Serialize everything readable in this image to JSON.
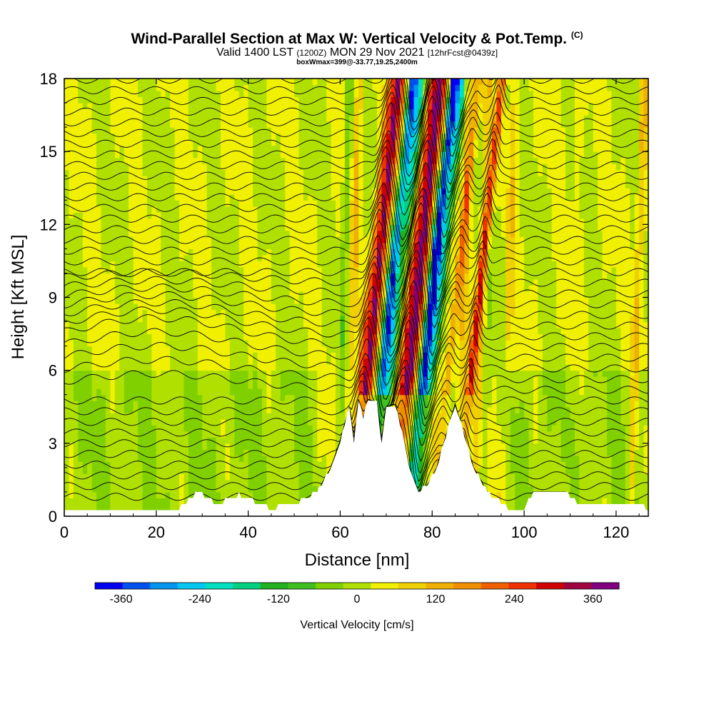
{
  "header": {
    "title_main": "Wind-Parallel Section at Max W: Vertical Velocity & Pot.Temp.",
    "title_copyright": "(C)",
    "valid_prefix": "Valid 1400 LST",
    "valid_utc": "(1200Z)",
    "valid_date": "MON 29 Nov 2021",
    "forecast_tag": "[12hrFcst@0439z]",
    "box_info": "boxWmax=399@-33.77,19.25,2400m"
  },
  "chart_data": {
    "type": "heatmap",
    "title": "Wind-Parallel Section at Max W: Vertical Velocity & Pot.Temp.",
    "xlabel": "Distance [nm]",
    "ylabel": "Height [Kft MSL]",
    "xlim": [
      0,
      127
    ],
    "ylim": [
      0,
      18
    ],
    "x_ticks": [
      0,
      20,
      40,
      60,
      80,
      100,
      120
    ],
    "y_ticks": [
      0,
      3,
      6,
      9,
      12,
      15,
      18
    ],
    "colorbar": {
      "title": "Vertical Velocity [cm/s]",
      "tick_values": [
        -360,
        -240,
        -120,
        0,
        120,
        240,
        360
      ],
      "tick_labels": [
        "-360",
        "-240",
        "-120",
        "0",
        "120",
        "240",
        "360"
      ],
      "range": [
        -400,
        400
      ],
      "colors": [
        "#0000f0",
        "#0050f0",
        "#0096f0",
        "#00c8f0",
        "#00e0c0",
        "#00d080",
        "#20b020",
        "#40c020",
        "#80d000",
        "#b0e000",
        "#f0f000",
        "#f0d000",
        "#f0b000",
        "#f09000",
        "#f06000",
        "#f03000",
        "#d00000",
        "#a00040",
        "#800080"
      ]
    },
    "terrain": [
      {
        "x": 0,
        "h": 0.3
      },
      {
        "x": 25,
        "h": 0.3
      },
      {
        "x": 29,
        "h": 1.0
      },
      {
        "x": 33,
        "h": 0.5
      },
      {
        "x": 38,
        "h": 0.9
      },
      {
        "x": 45,
        "h": 0.3
      },
      {
        "x": 51,
        "h": 0.6
      },
      {
        "x": 55,
        "h": 1.0
      },
      {
        "x": 58,
        "h": 2.0
      },
      {
        "x": 60,
        "h": 3.1
      },
      {
        "x": 62,
        "h": 4.5
      },
      {
        "x": 63,
        "h": 3.0
      },
      {
        "x": 64,
        "h": 4.8
      },
      {
        "x": 65,
        "h": 4.0
      },
      {
        "x": 66,
        "h": 4.8
      },
      {
        "x": 68,
        "h": 4.7
      },
      {
        "x": 69,
        "h": 3.0
      },
      {
        "x": 70,
        "h": 4.5
      },
      {
        "x": 72,
        "h": 4.6
      },
      {
        "x": 74,
        "h": 3.0
      },
      {
        "x": 75,
        "h": 2.0
      },
      {
        "x": 77,
        "h": 1.0
      },
      {
        "x": 79,
        "h": 1.3
      },
      {
        "x": 81,
        "h": 2.0
      },
      {
        "x": 83,
        "h": 3.3
      },
      {
        "x": 85,
        "h": 4.6
      },
      {
        "x": 87,
        "h": 3.3
      },
      {
        "x": 89,
        "h": 2.0
      },
      {
        "x": 92,
        "h": 1.0
      },
      {
        "x": 97,
        "h": 0.3
      },
      {
        "x": 100,
        "h": 0.3
      },
      {
        "x": 102,
        "h": 1.0
      },
      {
        "x": 109,
        "h": 1.0
      },
      {
        "x": 112,
        "h": 0.5
      },
      {
        "x": 117,
        "h": 0.5
      },
      {
        "x": 121,
        "h": 0.6
      },
      {
        "x": 124,
        "h": 0.6
      },
      {
        "x": 127,
        "h": 0.3
      }
    ],
    "w_bands": [
      {
        "x": 60,
        "w": -60
      },
      {
        "x": 62,
        "w": 80
      },
      {
        "x": 64,
        "w": 180
      },
      {
        "x": 65.5,
        "w": 330
      },
      {
        "x": 67,
        "w": 120
      },
      {
        "x": 68,
        "w": -150
      },
      {
        "x": 69,
        "w": -300
      },
      {
        "x": 70.5,
        "w": -200
      },
      {
        "x": 72,
        "w": 60
      },
      {
        "x": 73,
        "w": 220
      },
      {
        "x": 74.5,
        "w": 380
      },
      {
        "x": 76,
        "w": 150
      },
      {
        "x": 77,
        "w": -200
      },
      {
        "x": 78,
        "w": -360
      },
      {
        "x": 79.5,
        "w": -200
      },
      {
        "x": 81,
        "w": 40
      },
      {
        "x": 83,
        "w": 130
      },
      {
        "x": 86,
        "w": 90
      },
      {
        "x": 88,
        "w": 240
      },
      {
        "x": 90,
        "w": 70
      },
      {
        "x": 92,
        "w": -40
      },
      {
        "x": 96,
        "w": 60
      },
      {
        "x": 100,
        "w": 0
      },
      {
        "x": 110,
        "w": 30
      },
      {
        "x": 124,
        "w": 100
      }
    ],
    "theta_contour_count": 40
  }
}
